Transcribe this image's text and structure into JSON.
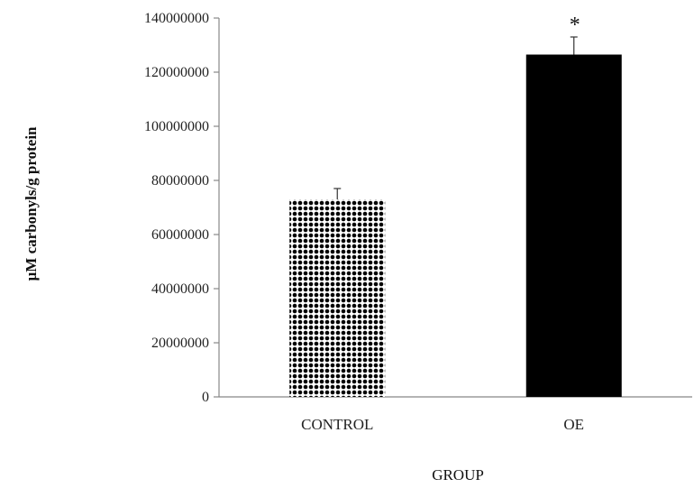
{
  "chart_data": {
    "type": "bar",
    "title": "",
    "xlabel": "GROUP",
    "ylabel": "µM carbonyls/g protein",
    "ylim": [
      0,
      140000000
    ],
    "yticks": [
      0,
      20000000,
      40000000,
      60000000,
      80000000,
      100000000,
      120000000,
      140000000
    ],
    "grid": false,
    "legend": "none",
    "categories": [
      "CONTROL",
      "OE"
    ],
    "values": [
      73000000,
      126500000
    ],
    "error": [
      4000000,
      6500000
    ],
    "annotations": [
      "",
      "*"
    ],
    "fills": [
      "dotted",
      "solid"
    ],
    "colors": {
      "bar": "#000000",
      "axis": "#888888",
      "background": "#ffffff"
    }
  }
}
